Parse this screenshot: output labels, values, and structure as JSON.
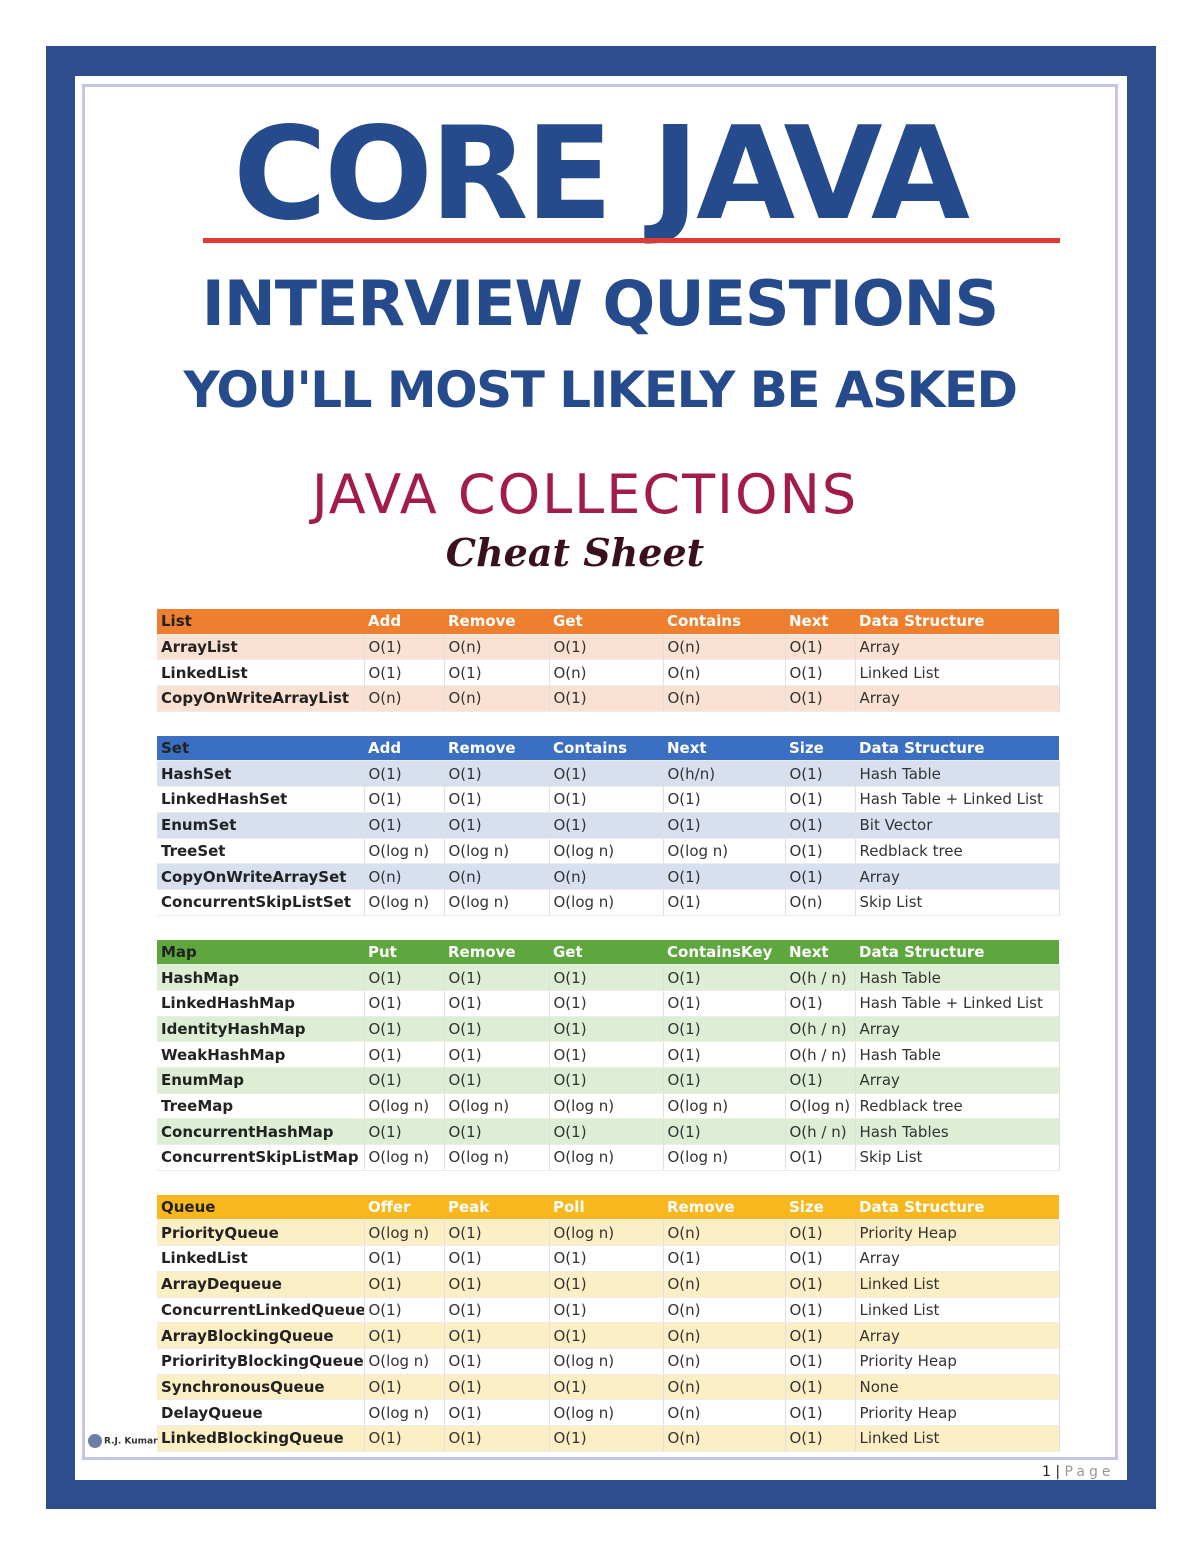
{
  "header": {
    "title": "CORE JAVA",
    "subtitle1": "INTERVIEW QUESTIONS",
    "subtitle2": "YOU'LL MOST LIKELY BE ASKED"
  },
  "collections": {
    "title": "JAVA COLLECTIONS",
    "subtitle": "Cheat Sheet"
  },
  "tables": [
    {
      "headers": [
        "List",
        "Add",
        "Remove",
        "Get",
        "Contains",
        "Next",
        "Data Structure"
      ],
      "rows": [
        [
          "ArrayList",
          "O(1)",
          "O(n)",
          "O(1)",
          "O(n)",
          "O(1)",
          "Array"
        ],
        [
          "LinkedList",
          "O(1)",
          "O(1)",
          "O(n)",
          "O(n)",
          "O(1)",
          "Linked List"
        ],
        [
          "CopyOnWriteArrayList",
          "O(n)",
          "O(n)",
          "O(1)",
          "O(n)",
          "O(1)",
          "Array"
        ]
      ]
    },
    {
      "headers": [
        "Set",
        "Add",
        "Remove",
        "Contains",
        "Next",
        "Size",
        "Data Structure"
      ],
      "rows": [
        [
          "HashSet",
          "O(1)",
          "O(1)",
          "O(1)",
          "O(h/n)",
          "O(1)",
          "Hash Table"
        ],
        [
          "LinkedHashSet",
          "O(1)",
          "O(1)",
          "O(1)",
          "O(1)",
          "O(1)",
          "Hash Table + Linked List"
        ],
        [
          "EnumSet",
          "O(1)",
          "O(1)",
          "O(1)",
          "O(1)",
          "O(1)",
          "Bit Vector"
        ],
        [
          "TreeSet",
          "O(log n)",
          "O(log n)",
          "O(log n)",
          "O(log n)",
          "O(1)",
          "Redblack tree"
        ],
        [
          "CopyOnWriteArraySet",
          "O(n)",
          "O(n)",
          "O(n)",
          "O(1)",
          "O(1)",
          "Array"
        ],
        [
          "ConcurrentSkipListSet",
          "O(log n)",
          "O(log n)",
          "O(log n)",
          "O(1)",
          "O(n)",
          "Skip List"
        ]
      ]
    },
    {
      "headers": [
        "Map",
        "Put",
        "Remove",
        "Get",
        "ContainsKey",
        "Next",
        "Data Structure"
      ],
      "rows": [
        [
          "HashMap",
          "O(1)",
          "O(1)",
          "O(1)",
          "O(1)",
          "O(h / n)",
          "Hash Table"
        ],
        [
          "LinkedHashMap",
          "O(1)",
          "O(1)",
          "O(1)",
          "O(1)",
          "O(1)",
          "Hash Table + Linked List"
        ],
        [
          "IdentityHashMap",
          "O(1)",
          "O(1)",
          "O(1)",
          "O(1)",
          "O(h / n)",
          "Array"
        ],
        [
          "WeakHashMap",
          "O(1)",
          "O(1)",
          "O(1)",
          "O(1)",
          "O(h / n)",
          "Hash Table"
        ],
        [
          "EnumMap",
          "O(1)",
          "O(1)",
          "O(1)",
          "O(1)",
          "O(1)",
          "Array"
        ],
        [
          "TreeMap",
          "O(log n)",
          "O(log n)",
          "O(log n)",
          "O(log n)",
          "O(log n)",
          "Redblack tree"
        ],
        [
          "ConcurrentHashMap",
          "O(1)",
          "O(1)",
          "O(1)",
          "O(1)",
          "O(h / n)",
          "Hash Tables"
        ],
        [
          "ConcurrentSkipListMap",
          "O(log n)",
          "O(log n)",
          "O(log n)",
          "O(log n)",
          "O(1)",
          "Skip List"
        ]
      ]
    },
    {
      "headers": [
        "Queue",
        "Offer",
        "Peak",
        "Poll",
        "Remove",
        "Size",
        "Data Structure"
      ],
      "rows": [
        [
          "PriorityQueue",
          "O(log n)",
          "O(1)",
          "O(log n)",
          "O(n)",
          "O(1)",
          "Priority Heap"
        ],
        [
          "LinkedList",
          "O(1)",
          "O(1)",
          "O(1)",
          "O(1)",
          "O(1)",
          "Array"
        ],
        [
          "ArrayDequeue",
          "O(1)",
          "O(1)",
          "O(1)",
          "O(n)",
          "O(1)",
          "Linked List"
        ],
        [
          "ConcurrentLinkedQueue",
          "O(1)",
          "O(1)",
          "O(1)",
          "O(n)",
          "O(1)",
          "Linked List"
        ],
        [
          "ArrayBlockingQueue",
          "O(1)",
          "O(1)",
          "O(1)",
          "O(n)",
          "O(1)",
          "Array"
        ],
        [
          "PriorirityBlockingQueue",
          "O(log n)",
          "O(1)",
          "O(log n)",
          "O(n)",
          "O(1)",
          "Priority Heap"
        ],
        [
          "SynchronousQueue",
          "O(1)",
          "O(1)",
          "O(1)",
          "O(n)",
          "O(1)",
          "None"
        ],
        [
          "DelayQueue",
          "O(log n)",
          "O(1)",
          "O(log n)",
          "O(n)",
          "O(1)",
          "Priority Heap"
        ],
        [
          "LinkedBlockingQueue",
          "O(1)",
          "O(1)",
          "O(1)",
          "O(n)",
          "O(1)",
          "Linked List"
        ]
      ]
    }
  ],
  "logo_text": "R.J. Kumar",
  "footer": {
    "page_number": "1",
    "separator": "|",
    "page_label": "Page"
  },
  "colors": {
    "frame": "#2e4d8c",
    "title_blue": "#254b8d",
    "title_rule": "#e03a33",
    "collections_title": "#a31b4a",
    "list_header": "#ee7f2f",
    "set_header": "#3b6fc1",
    "map_header": "#5ea73f",
    "queue_header": "#f8b71d"
  }
}
